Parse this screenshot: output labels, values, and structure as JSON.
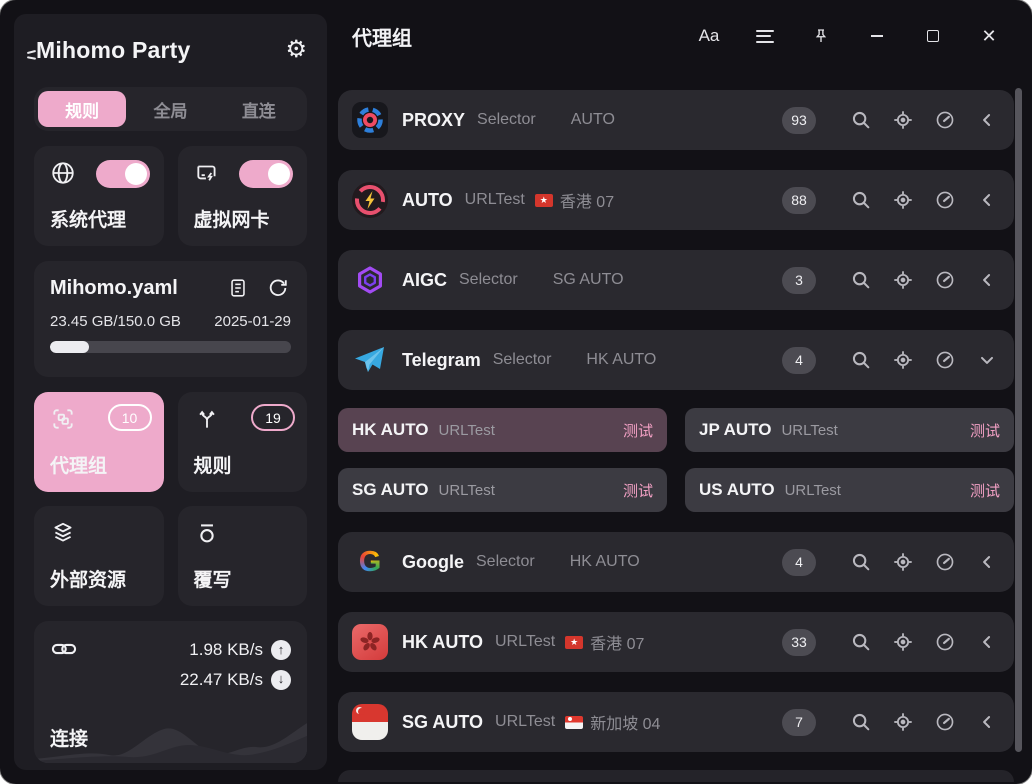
{
  "colors": {
    "accent_pink": "#EEAACB",
    "test_link_pink": "#F2A0C4",
    "badge_bg": "#4C4B52",
    "active_subcard_bg": "#584351"
  },
  "sidebar": {
    "app_title": "Mihomo Party",
    "mode_tabs": [
      {
        "label": "规则",
        "active": true
      },
      {
        "label": "全局",
        "active": false
      },
      {
        "label": "直连",
        "active": false
      }
    ],
    "toggles": [
      {
        "label": "系统代理",
        "icon": "globe-icon",
        "on": true
      },
      {
        "label": "虚拟网卡",
        "icon": "tun-adapter-icon",
        "on": true
      }
    ],
    "profile": {
      "name": "Mihomo.yaml",
      "usage": "23.45 GB/150.0 GB",
      "updated": "2025-01-29",
      "progress_percent": 16
    },
    "nav_cards": [
      {
        "label": "代理组",
        "badge": "10",
        "active": true,
        "icon": "proxy-groups-icon"
      },
      {
        "label": "规则",
        "badge": "19",
        "active": false,
        "icon": "rules-icon"
      },
      {
        "label": "外部资源",
        "badge": "",
        "active": false,
        "icon": "external-resources-icon"
      },
      {
        "label": "覆写",
        "badge": "",
        "active": false,
        "icon": "override-icon"
      }
    ],
    "connections": {
      "label": "连接",
      "upload_speed": "1.98 KB/s",
      "download_speed": "22.47 KB/s"
    }
  },
  "titlebar": {
    "page_title": "代理组",
    "font_button_label": "Aa"
  },
  "main": {
    "groups": [
      {
        "name": "PROXY",
        "type": "Selector",
        "now": "AUTO",
        "flag": "",
        "count": "93",
        "icon": "proxy",
        "expanded": false
      },
      {
        "name": "AUTO",
        "type": "URLTest",
        "now": "香港 07",
        "flag": "hk",
        "count": "88",
        "icon": "auto",
        "expanded": false
      },
      {
        "name": "AIGC",
        "type": "Selector",
        "now": "SG AUTO",
        "flag": "",
        "count": "3",
        "icon": "aigc",
        "expanded": false
      },
      {
        "name": "Telegram",
        "type": "Selector",
        "now": "HK AUTO",
        "flag": "",
        "count": "4",
        "icon": "telegram",
        "expanded": true,
        "children": [
          {
            "name": "HK AUTO",
            "type": "URLTest",
            "action": "测试",
            "active": true
          },
          {
            "name": "JP AUTO",
            "type": "URLTest",
            "action": "测试",
            "active": false
          },
          {
            "name": "SG AUTO",
            "type": "URLTest",
            "action": "测试",
            "active": false
          },
          {
            "name": "US AUTO",
            "type": "URLTest",
            "action": "测试",
            "active": false
          }
        ]
      },
      {
        "name": "Google",
        "type": "Selector",
        "now": "HK AUTO",
        "flag": "",
        "count": "4",
        "icon": "google",
        "expanded": false
      },
      {
        "name": "HK AUTO",
        "type": "URLTest",
        "now": "香港 07",
        "flag": "hk",
        "count": "33",
        "icon": "hk",
        "expanded": false
      },
      {
        "name": "SG AUTO",
        "type": "URLTest",
        "now": "新加坡 04",
        "flag": "sg",
        "count": "7",
        "icon": "sg",
        "expanded": false
      }
    ]
  }
}
